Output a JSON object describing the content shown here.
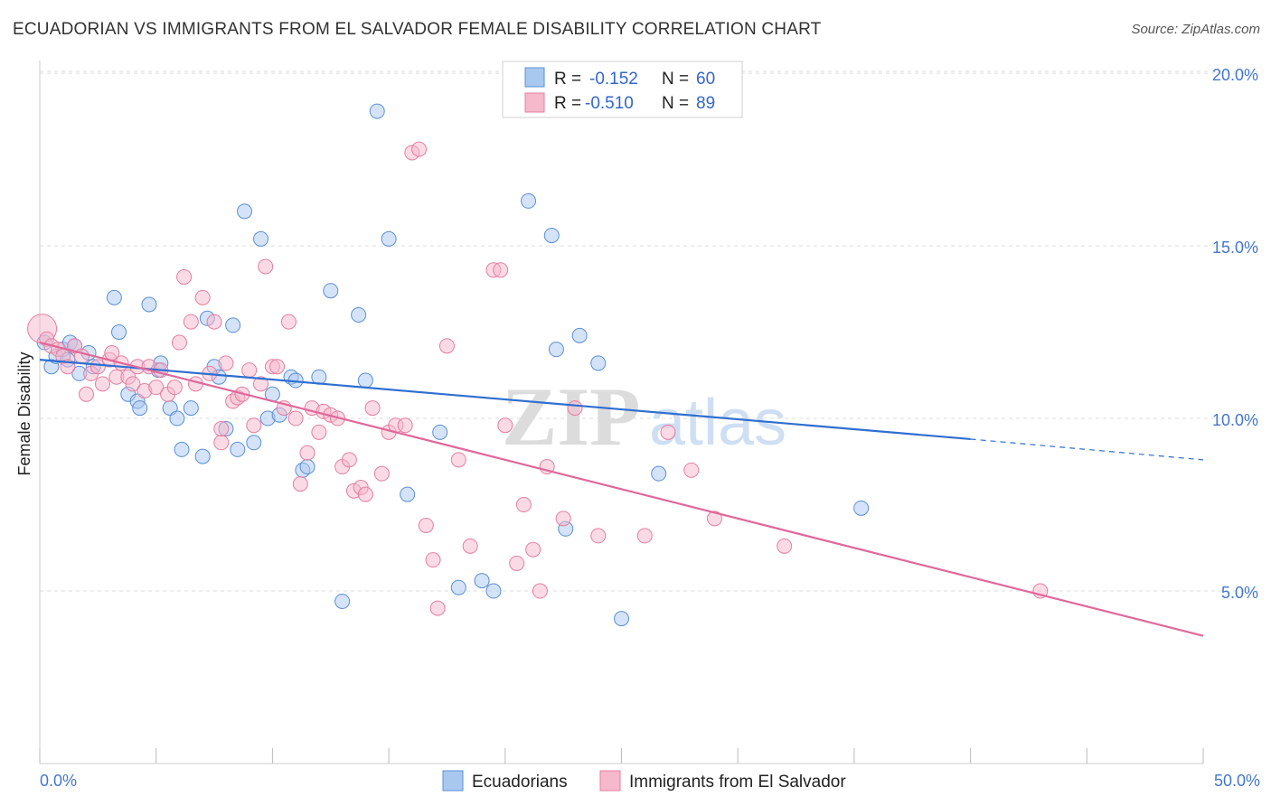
{
  "title": "ECUADORIAN VS IMMIGRANTS FROM EL SALVADOR FEMALE DISABILITY CORRELATION CHART",
  "source": "Source: ZipAtlas.com",
  "watermark": {
    "zip": "ZIP",
    "atlas": "atlas"
  },
  "colors": {
    "blue_fill": "#a9c8f0",
    "blue_stroke": "#5b8fd6",
    "blue_line": "#2f6fd0",
    "pink_fill": "#f6b8cb",
    "pink_stroke": "#e57fa0",
    "pink_line": "#e0689a",
    "grid": "#dddddd",
    "tick": "#4477cc"
  },
  "legend": {
    "r_label": "R =",
    "n_label": "N =",
    "rows": [
      {
        "r": "-0.152",
        "n": "60"
      },
      {
        "r": "-0.510",
        "n": "89"
      }
    ]
  },
  "chart_data": {
    "type": "scatter",
    "title": "ECUADORIAN VS IMMIGRANTS FROM EL SALVADOR FEMALE DISABILITY CORRELATION CHART",
    "xlabel": "",
    "ylabel": "Female Disability",
    "xlim": [
      0,
      50
    ],
    "ylim": [
      0,
      20.5
    ],
    "x_tick_labels": [
      "0.0%",
      "50.0%"
    ],
    "y_ticks": [
      5,
      10,
      15,
      20
    ],
    "y_tick_labels": [
      "5.0%",
      "10.0%",
      "15.0%",
      "20.0%"
    ],
    "grid": "horizontal dashed",
    "legend_position": "top-center",
    "series": [
      {
        "name": "Ecuadorians",
        "r": -0.152,
        "n": 60,
        "trend": {
          "x0": 0,
          "y0": 11.7,
          "x1": 40,
          "y1": 9.4,
          "dashed_to": 50,
          "dashed_y": 8.8
        },
        "points": [
          [
            0.2,
            12.2
          ],
          [
            0.5,
            11.5
          ],
          [
            0.7,
            11.8
          ],
          [
            1.0,
            12.0
          ],
          [
            1.2,
            11.7
          ],
          [
            1.3,
            12.2
          ],
          [
            1.5,
            12.1
          ],
          [
            1.7,
            11.3
          ],
          [
            2.1,
            11.9
          ],
          [
            2.3,
            11.5
          ],
          [
            3.2,
            13.5
          ],
          [
            3.4,
            12.5
          ],
          [
            3.8,
            10.7
          ],
          [
            4.2,
            10.5
          ],
          [
            4.3,
            10.3
          ],
          [
            4.7,
            13.3
          ],
          [
            5.1,
            11.4
          ],
          [
            5.2,
            11.6
          ],
          [
            5.6,
            10.3
          ],
          [
            5.9,
            10.0
          ],
          [
            6.1,
            9.1
          ],
          [
            6.5,
            10.3
          ],
          [
            7.0,
            8.9
          ],
          [
            7.2,
            12.9
          ],
          [
            7.5,
            11.5
          ],
          [
            7.7,
            11.2
          ],
          [
            8.0,
            9.7
          ],
          [
            8.3,
            12.7
          ],
          [
            8.5,
            9.1
          ],
          [
            8.8,
            16.0
          ],
          [
            9.2,
            9.3
          ],
          [
            9.5,
            15.2
          ],
          [
            9.8,
            10.0
          ],
          [
            10.0,
            10.7
          ],
          [
            10.3,
            10.1
          ],
          [
            10.8,
            11.2
          ],
          [
            11.0,
            11.1
          ],
          [
            11.3,
            8.5
          ],
          [
            11.5,
            8.6
          ],
          [
            12.0,
            11.2
          ],
          [
            12.5,
            13.7
          ],
          [
            13.0,
            4.7
          ],
          [
            13.7,
            13.0
          ],
          [
            14.0,
            11.1
          ],
          [
            14.5,
            18.9
          ],
          [
            15.0,
            15.2
          ],
          [
            15.8,
            7.8
          ],
          [
            17.2,
            9.6
          ],
          [
            18.0,
            5.1
          ],
          [
            19.0,
            5.3
          ],
          [
            19.5,
            5.0
          ],
          [
            21.0,
            16.3
          ],
          [
            22.0,
            15.3
          ],
          [
            22.2,
            12.0
          ],
          [
            22.6,
            6.8
          ],
          [
            23.2,
            12.4
          ],
          [
            24.0,
            11.6
          ],
          [
            25.0,
            4.2
          ],
          [
            26.6,
            8.4
          ],
          [
            35.3,
            7.4
          ]
        ]
      },
      {
        "name": "Immigrants from El Salvador",
        "r": -0.51,
        "n": 89,
        "trend": {
          "x0": 0,
          "y0": 12.2,
          "x1": 50,
          "y1": 3.7
        },
        "points": [
          [
            0.1,
            12.6
          ],
          [
            0.3,
            12.3
          ],
          [
            0.5,
            12.1
          ],
          [
            0.8,
            12.0
          ],
          [
            1.0,
            11.8
          ],
          [
            1.2,
            11.5
          ],
          [
            1.5,
            12.1
          ],
          [
            1.8,
            11.8
          ],
          [
            2.0,
            10.7
          ],
          [
            2.2,
            11.3
          ],
          [
            2.5,
            11.5
          ],
          [
            2.7,
            11.0
          ],
          [
            3.0,
            11.7
          ],
          [
            3.3,
            11.2
          ],
          [
            3.5,
            11.6
          ],
          [
            3.8,
            11.2
          ],
          [
            4.0,
            11.0
          ],
          [
            4.2,
            11.5
          ],
          [
            4.5,
            10.8
          ],
          [
            4.7,
            11.5
          ],
          [
            5.0,
            10.9
          ],
          [
            5.2,
            11.4
          ],
          [
            5.5,
            10.7
          ],
          [
            5.8,
            10.9
          ],
          [
            6.0,
            12.2
          ],
          [
            6.2,
            14.1
          ],
          [
            6.5,
            12.8
          ],
          [
            6.7,
            11.0
          ],
          [
            7.0,
            13.5
          ],
          [
            7.3,
            11.3
          ],
          [
            7.5,
            12.8
          ],
          [
            7.8,
            9.3
          ],
          [
            8.0,
            11.6
          ],
          [
            8.3,
            10.5
          ],
          [
            8.5,
            10.6
          ],
          [
            8.7,
            10.7
          ],
          [
            9.0,
            11.4
          ],
          [
            9.2,
            9.8
          ],
          [
            9.5,
            11.0
          ],
          [
            9.7,
            14.4
          ],
          [
            10.0,
            11.5
          ],
          [
            10.2,
            11.5
          ],
          [
            10.5,
            10.3
          ],
          [
            10.7,
            12.8
          ],
          [
            11.0,
            10.0
          ],
          [
            11.2,
            8.1
          ],
          [
            11.5,
            9.0
          ],
          [
            11.7,
            10.3
          ],
          [
            12.0,
            9.6
          ],
          [
            12.2,
            10.2
          ],
          [
            12.5,
            10.1
          ],
          [
            12.8,
            10.0
          ],
          [
            13.0,
            8.6
          ],
          [
            13.3,
            8.8
          ],
          [
            13.5,
            7.9
          ],
          [
            13.8,
            8.0
          ],
          [
            14.0,
            7.8
          ],
          [
            14.3,
            10.3
          ],
          [
            14.7,
            8.4
          ],
          [
            15.0,
            9.6
          ],
          [
            15.3,
            9.8
          ],
          [
            15.7,
            9.8
          ],
          [
            16.0,
            17.7
          ],
          [
            16.3,
            17.8
          ],
          [
            16.6,
            6.9
          ],
          [
            16.9,
            5.9
          ],
          [
            17.1,
            4.5
          ],
          [
            17.5,
            12.1
          ],
          [
            18.0,
            8.8
          ],
          [
            18.5,
            6.3
          ],
          [
            19.5,
            14.3
          ],
          [
            19.8,
            14.3
          ],
          [
            20.0,
            9.8
          ],
          [
            20.5,
            5.8
          ],
          [
            20.8,
            7.5
          ],
          [
            21.2,
            6.2
          ],
          [
            21.5,
            5.0
          ],
          [
            21.8,
            8.6
          ],
          [
            22.5,
            7.1
          ],
          [
            23.0,
            10.3
          ],
          [
            24.0,
            6.6
          ],
          [
            26.0,
            6.6
          ],
          [
            27.0,
            9.6
          ],
          [
            28.0,
            8.5
          ],
          [
            29.0,
            7.1
          ],
          [
            32.0,
            6.3
          ],
          [
            43.0,
            5.0
          ],
          [
            7.8,
            9.7
          ],
          [
            3.1,
            11.9
          ]
        ]
      }
    ]
  }
}
